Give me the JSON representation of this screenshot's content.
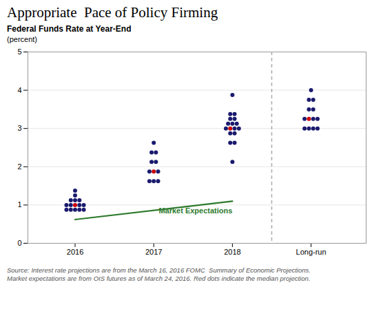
{
  "chart_data": {
    "type": "dot",
    "title": "Appropriate  Pace of Policy Firming",
    "subtitle": "Federal Funds Rate at Year-End",
    "ylabel": "(percent)",
    "source": "Source: Interest rate projections are from the March 16, 2016 FOMC  Summary of Economic Projections.\nMarket expectations are from OIS futures as of March 24, 2016. Red dots indicate the median projection.",
    "categories": [
      "2016",
      "2017",
      "2018",
      "Long-run"
    ],
    "values": [
      [
        0.875,
        0.875,
        0.875,
        0.875,
        0.875,
        1.0,
        1.0,
        1.0,
        1.0,
        1.0,
        1.125,
        1.125,
        1.125,
        1.25,
        1.375
      ],
      [
        1.625,
        1.625,
        1.625,
        1.875,
        1.875,
        1.875,
        2.125,
        2.125,
        2.375,
        2.375,
        2.625
      ],
      [
        2.125,
        2.625,
        2.625,
        2.875,
        2.875,
        3.0,
        3.0,
        3.0,
        3.0,
        3.125,
        3.125,
        3.125,
        3.25,
        3.25,
        3.375,
        3.375,
        3.875
      ],
      [
        3.0,
        3.0,
        3.0,
        3.0,
        3.25,
        3.25,
        3.25,
        3.25,
        3.5,
        3.5,
        3.75,
        3.75,
        4.0
      ]
    ],
    "colors": [
      [
        "#1a1a6e",
        "#1a1a6e",
        "#1a1a6e",
        "#1a1a6e",
        "#1a1a6e",
        "#1a1a6e",
        "#1a1a6e",
        "#cc0000",
        "#1a1a6e",
        "#1a1a6e",
        "#1a1a6e",
        "#1a1a6e",
        "#1a1a6e",
        "#1a1a6e",
        "#1a1a6e"
      ],
      [
        "#1a1a6e",
        "#1a1a6e",
        "#1a1a6e",
        "#1a1a6e",
        "#cc0000",
        "#1a1a6e",
        "#1a1a6e",
        "#1a1a6e",
        "#1a1a6e",
        "#1a1a6e",
        "#1a1a6e"
      ],
      [
        "#1a1a6e",
        "#1a1a6e",
        "#1a1a6e",
        "#1a1a6e",
        "#1a1a6e",
        "#1a1a6e",
        "#cc0000",
        "#1a1a6e",
        "#1a1a6e",
        "#1a1a6e",
        "#1a1a6e",
        "#1a1a6e",
        "#1a1a6e",
        "#1a1a6e",
        "#1a1a6e",
        "#1a1a6e",
        "#1a1a6e"
      ],
      [
        "#1a1a6e",
        "#1a1a6e",
        "#1a1a6e",
        "#1a1a6e",
        "#1a1a6e",
        "#cc0000",
        "#1a1a6e",
        "#1a1a6e",
        "#1a1a6e",
        "#1a1a6e",
        "#1a1a6e",
        "#1a1a6e",
        "#1a1a6e"
      ]
    ],
    "series": [
      {
        "name": "Market Expectations",
        "type": "line",
        "color": "#2d7a2d",
        "x": [
          "2016",
          "2018"
        ],
        "values": [
          0.62,
          1.1
        ]
      }
    ],
    "ylim": [
      0,
      5
    ],
    "yticks": [
      0,
      1,
      2,
      3,
      4,
      5
    ],
    "grid": true
  }
}
